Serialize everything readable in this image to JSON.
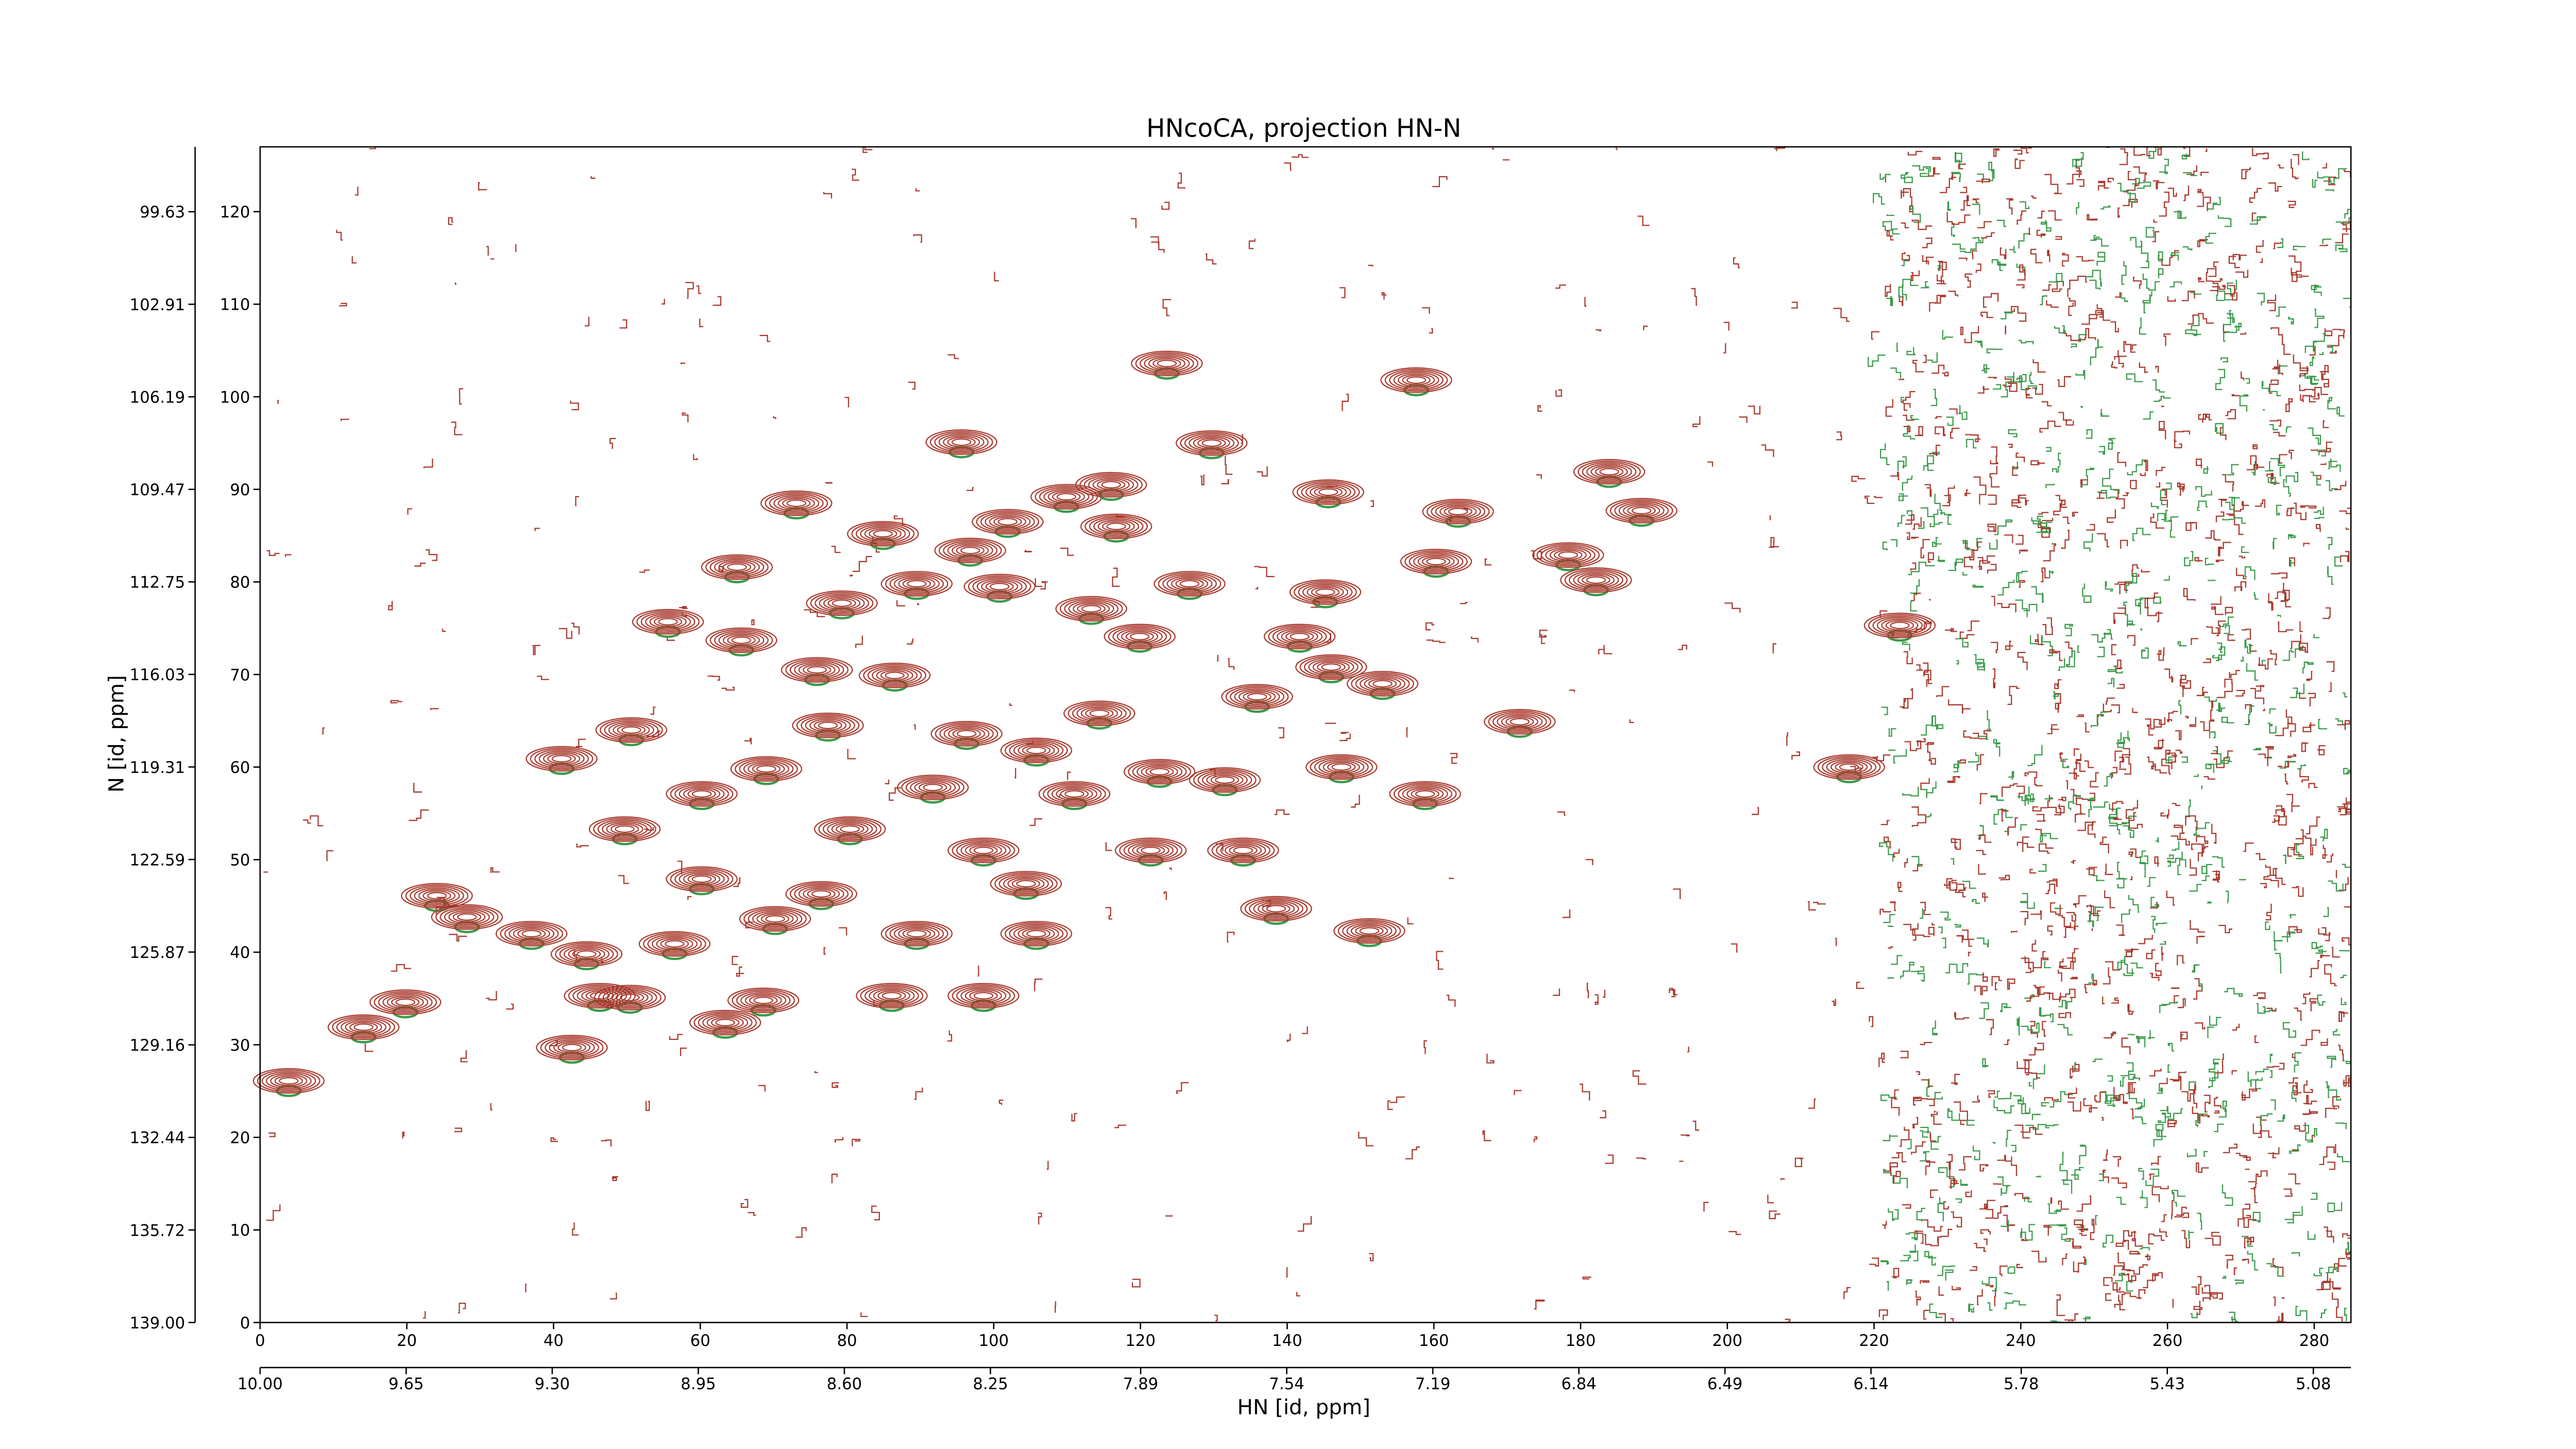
{
  "chart_data": {
    "type": "contour",
    "title": "HNcoCA, projection HN-N",
    "xlabel": "HN [id, ppm]",
    "ylabel": "N [id, ppm]",
    "xlim": [
      0,
      285
    ],
    "xticks": [
      0,
      20,
      40,
      60,
      80,
      100,
      120,
      140,
      160,
      180,
      200,
      220,
      240,
      260,
      280
    ],
    "x2lim": [
      10.0,
      4.99
    ],
    "x2ticks": [
      {
        "value": 10,
        "label": "10.00"
      },
      9.65,
      {
        "value": 9.3,
        "label": "9.30"
      },
      8.95,
      {
        "value": 8.6,
        "label": "8.60"
      },
      8.25,
      7.89,
      7.54,
      7.19,
      6.84,
      6.49,
      6.14,
      5.78,
      5.43,
      5.08
    ],
    "ylim": [
      0,
      127
    ],
    "yticks": [
      0,
      10,
      20,
      30,
      40,
      50,
      60,
      70,
      80,
      90,
      100,
      110,
      120
    ],
    "y2lim": [
      139.0,
      97.33
    ],
    "y2ticks": [
      {
        "value": 139,
        "label": "139.00"
      },
      135.72,
      132.44,
      129.16,
      125.87,
      122.59,
      119.31,
      116.03,
      112.75,
      109.47,
      106.19,
      102.91,
      99.63
    ],
    "x": [
      3.9,
      14.1,
      19.8,
      24.1,
      28.2,
      37.0,
      42.5,
      44.5,
      46.3,
      50.4,
      56.5,
      49.7,
      50.6,
      41.1,
      55.6,
      60.2,
      60.2,
      63.4,
      65.6,
      68.6,
      70.2,
      69.0,
      65.0,
      73.1,
      75.9,
      76.5,
      77.4,
      80.4,
      79.3,
      84.9,
      86.1,
      86.5,
      89.5,
      89.5,
      91.7,
      96.3,
      95.6,
      98.6,
      98.6,
      96.8,
      100.8,
      101.9,
      104.4,
      105.8,
      105.8,
      111.0,
      109.9,
      113.3,
      114.4,
      116.0,
      116.7,
      119.9,
      122.6,
      121.4,
      123.6,
      126.7,
      129.7,
      131.5,
      134.0,
      135.9,
      138.5,
      141.7,
      145.6,
      145.2,
      147.4,
      146.0,
      153.0,
      151.2,
      157.6,
      158.8,
      160.3,
      163.3,
      171.7,
      178.3,
      182.1,
      183.9,
      188.3,
      216.6,
      223.5
    ],
    "y": [
      26.1,
      31.9,
      34.6,
      46.1,
      43.8,
      42.0,
      29.7,
      39.8,
      35.3,
      35.1,
      40.9,
      53.3,
      64.0,
      60.9,
      75.7,
      47.9,
      57.1,
      32.4,
      73.7,
      34.8,
      43.6,
      59.8,
      81.6,
      88.5,
      70.5,
      46.3,
      64.5,
      53.3,
      77.7,
      85.2,
      35.3,
      69.9,
      42.0,
      79.8,
      57.8,
      63.6,
      95.1,
      35.3,
      51.0,
      83.4,
      79.5,
      86.5,
      47.4,
      42.0,
      61.8,
      57.1,
      89.2,
      77.1,
      65.8,
      90.5,
      86.0,
      74.1,
      59.5,
      51.0,
      103.6,
      79.8,
      95.0,
      58.6,
      51.0,
      67.6,
      44.7,
      74.1,
      89.7,
      78.9,
      60.0,
      70.8,
      69.0,
      42.3,
      101.8,
      57.1,
      82.2,
      87.6,
      64.9,
      82.9,
      80.2,
      91.9,
      87.7,
      60.0,
      75.3
    ],
    "colors": {
      "positive": "#a8392d",
      "negative": "#3a9a4a"
    }
  }
}
